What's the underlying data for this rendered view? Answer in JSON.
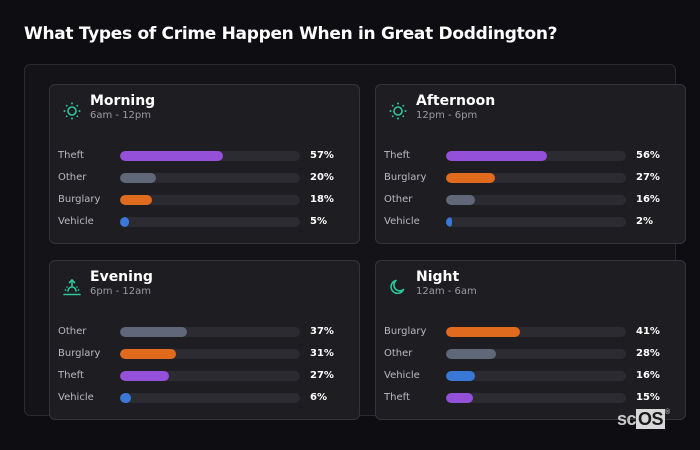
{
  "title": "What Types of Crime Happen When in Great Doddington?",
  "colors": {
    "theft": "#9450d8",
    "other": "#5f6778",
    "burglary": "#e06b1f",
    "vehicle": "#3a78d8",
    "icon": "#2ec79a"
  },
  "cards": [
    {
      "title": "Morning",
      "subtitle": "6am - 12pm",
      "icon": "sun-icon",
      "rows": [
        {
          "label": "Theft",
          "value": 57,
          "display": "57%",
          "color": "#9450d8"
        },
        {
          "label": "Other",
          "value": 20,
          "display": "20%",
          "color": "#5f6778"
        },
        {
          "label": "Burglary",
          "value": 18,
          "display": "18%",
          "color": "#e06b1f"
        },
        {
          "label": "Vehicle",
          "value": 5,
          "display": "5%",
          "color": "#3a78d8"
        }
      ]
    },
    {
      "title": "Afternoon",
      "subtitle": "12pm - 6pm",
      "icon": "sun-icon",
      "rows": [
        {
          "label": "Theft",
          "value": 56,
          "display": "56%",
          "color": "#9450d8"
        },
        {
          "label": "Burglary",
          "value": 27,
          "display": "27%",
          "color": "#e06b1f"
        },
        {
          "label": "Other",
          "value": 16,
          "display": "16%",
          "color": "#5f6778"
        },
        {
          "label": "Vehicle",
          "value": 2,
          "display": "2%",
          "color": "#3a78d8"
        }
      ]
    },
    {
      "title": "Evening",
      "subtitle": "6pm - 12am",
      "icon": "sunset-icon",
      "rows": [
        {
          "label": "Other",
          "value": 37,
          "display": "37%",
          "color": "#5f6778"
        },
        {
          "label": "Burglary",
          "value": 31,
          "display": "31%",
          "color": "#e06b1f"
        },
        {
          "label": "Theft",
          "value": 27,
          "display": "27%",
          "color": "#9450d8"
        },
        {
          "label": "Vehicle",
          "value": 6,
          "display": "6%",
          "color": "#3a78d8"
        }
      ]
    },
    {
      "title": "Night",
      "subtitle": "12am - 6am",
      "icon": "moon-icon",
      "rows": [
        {
          "label": "Burglary",
          "value": 41,
          "display": "41%",
          "color": "#e06b1f"
        },
        {
          "label": "Other",
          "value": 28,
          "display": "28%",
          "color": "#5f6778"
        },
        {
          "label": "Vehicle",
          "value": 16,
          "display": "16%",
          "color": "#3a78d8"
        },
        {
          "label": "Theft",
          "value": 15,
          "display": "15%",
          "color": "#9450d8"
        }
      ]
    }
  ],
  "logo": {
    "sc": "sc",
    "os": "OS",
    "reg": "®"
  },
  "chart_data": [
    {
      "type": "bar",
      "title": "Morning",
      "subtitle": "6am - 12pm",
      "categories": [
        "Theft",
        "Other",
        "Burglary",
        "Vehicle"
      ],
      "values": [
        57,
        20,
        18,
        5
      ],
      "unit": "%",
      "ylim": [
        0,
        100
      ]
    },
    {
      "type": "bar",
      "title": "Afternoon",
      "subtitle": "12pm - 6pm",
      "categories": [
        "Theft",
        "Burglary",
        "Other",
        "Vehicle"
      ],
      "values": [
        56,
        27,
        16,
        2
      ],
      "unit": "%",
      "ylim": [
        0,
        100
      ]
    },
    {
      "type": "bar",
      "title": "Evening",
      "subtitle": "6pm - 12am",
      "categories": [
        "Other",
        "Burglary",
        "Theft",
        "Vehicle"
      ],
      "values": [
        37,
        31,
        27,
        6
      ],
      "unit": "%",
      "ylim": [
        0,
        100
      ]
    },
    {
      "type": "bar",
      "title": "Night",
      "subtitle": "12am - 6am",
      "categories": [
        "Burglary",
        "Other",
        "Vehicle",
        "Theft"
      ],
      "values": [
        41,
        28,
        16,
        15
      ],
      "unit": "%",
      "ylim": [
        0,
        100
      ]
    }
  ]
}
